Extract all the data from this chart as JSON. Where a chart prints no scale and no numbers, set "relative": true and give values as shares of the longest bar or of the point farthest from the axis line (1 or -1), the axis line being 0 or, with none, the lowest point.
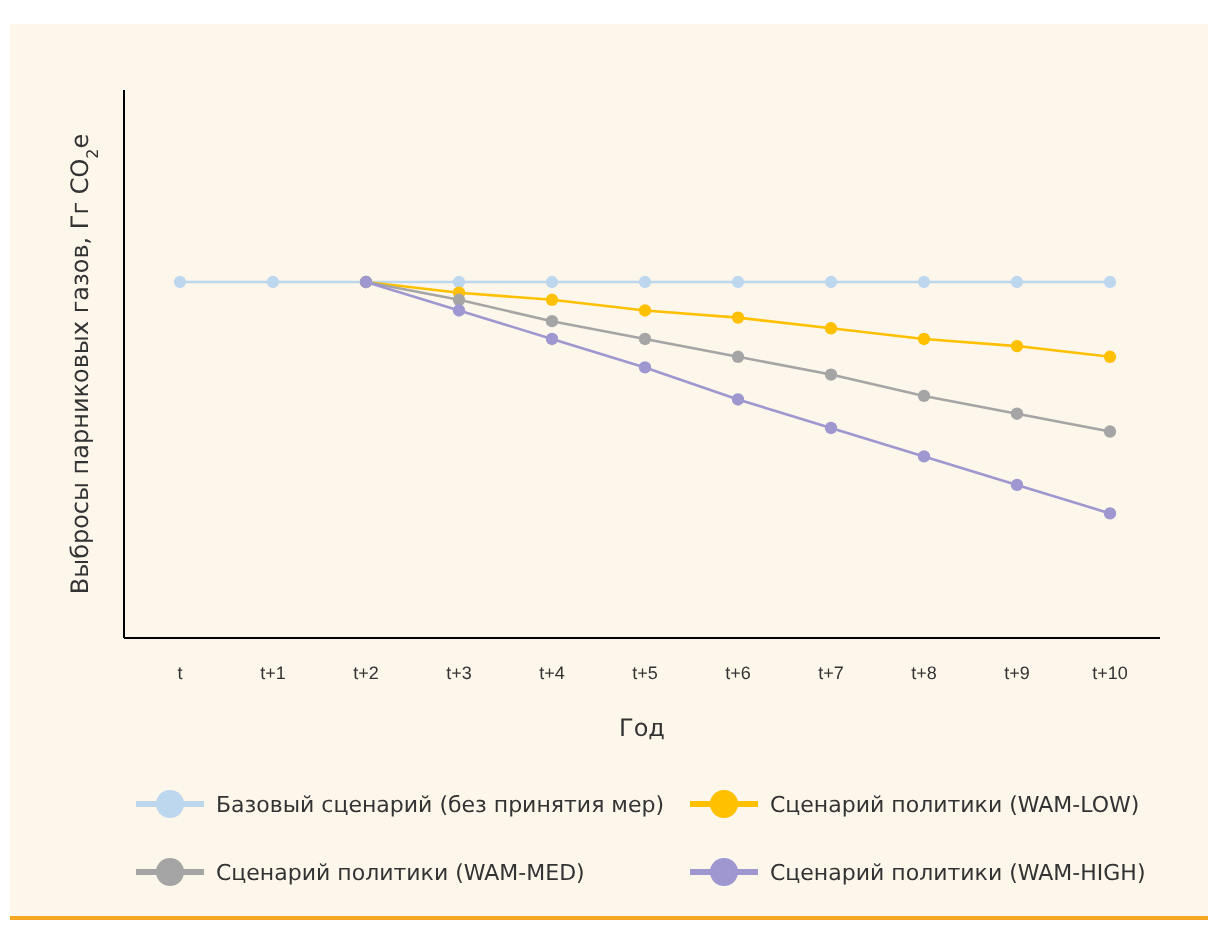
{
  "chart_data": {
    "type": "line",
    "relative": true,
    "xlabel": "Год",
    "ylabel": "Выбросы парниковых газов, Гг CO$_{2}$e",
    "categories": [
      "t",
      "t+1",
      "t+2",
      "t+3",
      "t+4",
      "t+5",
      "t+6",
      "t+7",
      "t+8",
      "t+9",
      "t+10"
    ],
    "series": [
      {
        "name": "Базовый сценарий (без принятия мер)",
        "color": "#bdd7ee",
        "values": [
          1,
          1,
          1,
          1,
          1,
          1,
          1,
          1,
          1,
          1,
          1
        ]
      },
      {
        "name": "Сценарий политики (WAM-LOW)",
        "color": "#ffc000",
        "values": [
          null,
          null,
          1,
          0.97,
          0.95,
          0.92,
          0.9,
          0.87,
          0.84,
          0.82,
          0.79
        ]
      },
      {
        "name": "Сценарий политики (WAM-MED)",
        "color": "#a5a5a5",
        "values": [
          null,
          null,
          1,
          0.95,
          0.89,
          0.84,
          0.79,
          0.74,
          0.68,
          0.63,
          0.58
        ]
      },
      {
        "name": "Сценарий политики (WAM-HIGH)",
        "color": "#9e97d0",
        "values": [
          null,
          null,
          1,
          0.92,
          0.84,
          0.76,
          0.67,
          0.59,
          0.51,
          0.43,
          0.35
        ]
      }
    ],
    "marker": "circle",
    "line_style": "solid",
    "legend": "bottom"
  }
}
